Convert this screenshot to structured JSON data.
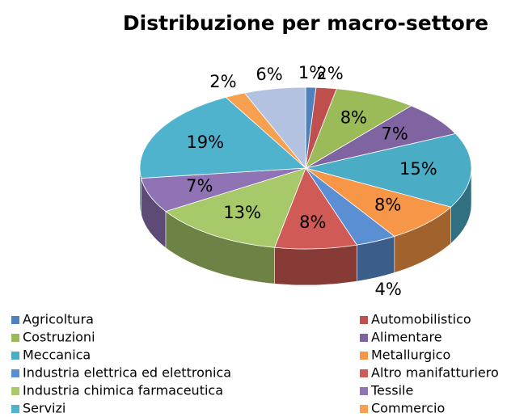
{
  "chart_data": {
    "type": "pie3d",
    "title": "Distribuzione per macro-settore",
    "categories": [
      "Agricoltura",
      "Automobilistico",
      "Costruzioni",
      "Alimentare",
      "Meccanica",
      "Metallurgico",
      "Industria elettrica ed elettronica",
      "Altro manifatturiero",
      "Industria chimica farmaceutica",
      "Tessile",
      "Servizi",
      "Commercio",
      null
    ],
    "values": [
      1,
      2,
      8,
      7,
      15,
      8,
      4,
      8,
      13,
      7,
      19,
      2,
      6
    ],
    "value_labels": [
      "1%",
      "2%",
      "8%",
      "7%",
      "15%",
      "8%",
      "4%",
      "8%",
      "13%",
      "7%",
      "19%",
      "2%",
      "6%"
    ],
    "colors": [
      "#4f81bd",
      "#c0504d",
      "#9bbb59",
      "#8064a2",
      "#4bacc6",
      "#f79646",
      "#5b8fd3",
      "#d05a55",
      "#a8c96a",
      "#8f73b5",
      "#4fb3cd",
      "#f7a050",
      "#b4c2e2"
    ],
    "legend": "bottom"
  }
}
